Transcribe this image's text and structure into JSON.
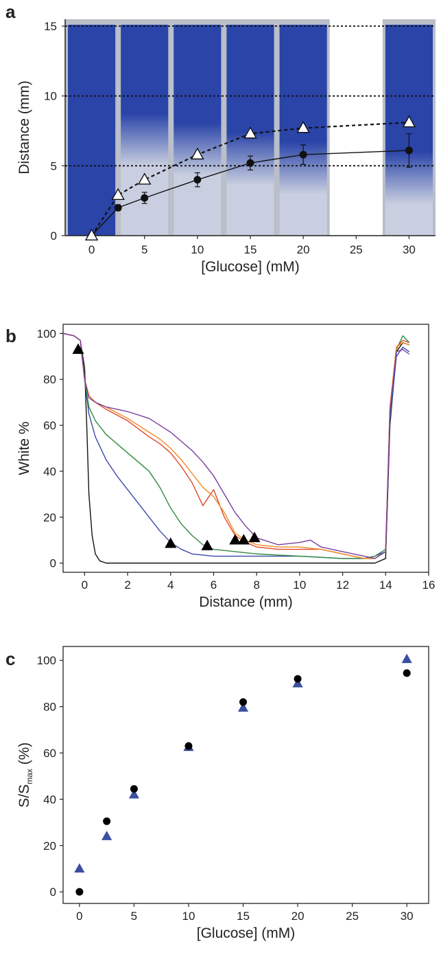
{
  "chart_data": [
    {
      "panel": "a",
      "type": "line",
      "background": "photo strips of blue dye in paper channels",
      "xlabel": "[Glucose] (mM)",
      "ylabel": "Distance (mm)",
      "xlim": [
        -2.5,
        32.5
      ],
      "ylim": [
        0,
        15
      ],
      "xticks": [
        0,
        5,
        10,
        15,
        20,
        25,
        30
      ],
      "yticks": [
        0,
        5,
        10,
        15
      ],
      "reference_lines": [
        5,
        10,
        15
      ],
      "strip_centers": [
        0,
        5,
        10,
        15,
        20,
        30
      ],
      "strip_colors": {
        "blue": "#2a44a8",
        "light": "#c9cfe0",
        "frame": "#b9bec9"
      },
      "series": [
        {
          "marker": "triangle-open",
          "style": "dashed",
          "x": [
            0,
            2.5,
            5,
            10,
            15,
            20,
            30
          ],
          "y": [
            0,
            2.9,
            4.0,
            5.8,
            7.3,
            7.7,
            8.1
          ]
        },
        {
          "marker": "circle-filled",
          "style": "solid",
          "x": [
            0,
            2.5,
            5,
            10,
            15,
            20,
            30
          ],
          "y": [
            0,
            2.0,
            2.7,
            4.0,
            5.2,
            5.8,
            6.1
          ],
          "err": [
            0,
            0.2,
            0.4,
            0.5,
            0.5,
            0.7,
            1.2
          ]
        }
      ]
    },
    {
      "panel": "b",
      "type": "line",
      "xlabel": "Distance (mm)",
      "ylabel": "White %",
      "xlim": [
        -1,
        16
      ],
      "ylim": [
        -4,
        104
      ],
      "xticks": [
        0,
        2,
        4,
        6,
        8,
        10,
        12,
        14,
        16
      ],
      "yticks": [
        0,
        20,
        40,
        60,
        80,
        100
      ],
      "series": [
        {
          "color": "#111111",
          "x": [
            -1,
            -0.5,
            -0.2,
            0,
            0.1,
            0.2,
            0.35,
            0.5,
            0.7,
            1.0,
            1.5,
            2,
            4,
            6,
            8,
            10,
            12,
            13,
            13.5,
            14,
            14.2,
            14.5,
            14.8,
            15.1
          ],
          "y": [
            100,
            99,
            97,
            85,
            60,
            30,
            12,
            4,
            1,
            0,
            0,
            0,
            0,
            0,
            0,
            0,
            0,
            0,
            0,
            2,
            60,
            92,
            96,
            95
          ]
        },
        {
          "color": "#3a47a8",
          "x": [
            -1,
            -0.5,
            -0.2,
            0,
            0.2,
            0.5,
            1,
            1.5,
            2,
            2.5,
            3,
            3.5,
            4,
            4.5,
            5,
            6,
            8,
            10,
            12,
            13,
            13.5,
            14,
            14.2,
            14.5,
            14.8,
            15.1
          ],
          "y": [
            100,
            99,
            97,
            80,
            65,
            55,
            45,
            38,
            32,
            26,
            20,
            14,
            9,
            6,
            4,
            3,
            3,
            3,
            2,
            2,
            3,
            5,
            62,
            90,
            94,
            92
          ]
        },
        {
          "color": "#2e8b3d",
          "x": [
            -1,
            -0.5,
            -0.2,
            0,
            0.2,
            0.5,
            1,
            1.5,
            2,
            2.5,
            3,
            3.5,
            4,
            4.5,
            5,
            5.5,
            6,
            8,
            10,
            12,
            13,
            13.5,
            14,
            14.2,
            14.5,
            14.8,
            15.1
          ],
          "y": [
            100,
            99,
            97,
            80,
            68,
            62,
            56,
            52,
            48,
            44,
            40,
            33,
            24,
            17,
            12,
            8,
            6,
            4,
            3,
            2,
            2,
            3,
            6,
            65,
            93,
            99,
            96
          ]
        },
        {
          "color": "#e0462a",
          "x": [
            -1,
            -0.5,
            -0.2,
            0,
            0.2,
            0.5,
            1,
            2,
            3,
            3.5,
            4,
            4.5,
            5,
            5.5,
            6,
            6.5,
            7,
            7.5,
            8,
            9,
            10,
            11,
            12,
            13,
            13.5,
            14,
            14.2,
            14.5,
            14.8,
            15.1
          ],
          "y": [
            100,
            99,
            97,
            80,
            73,
            70,
            67,
            62,
            55,
            52,
            48,
            42,
            35,
            25,
            32,
            20,
            12,
            9,
            7,
            6,
            6,
            6,
            4,
            2,
            2,
            5,
            68,
            94,
            97,
            96
          ]
        },
        {
          "color": "#f08a24",
          "x": [
            -1,
            -0.5,
            -0.2,
            0,
            0.2,
            0.5,
            1,
            2,
            3,
            3.5,
            4,
            4.5,
            5,
            5.5,
            6,
            6.5,
            7,
            7.5,
            8,
            9,
            10,
            11,
            12,
            13,
            13.5,
            14,
            14.2,
            14.5,
            14.8,
            15.1
          ],
          "y": [
            100,
            99,
            97,
            80,
            73,
            70,
            68,
            63,
            57,
            54,
            50,
            45,
            39,
            33,
            29,
            22,
            13,
            10,
            8,
            7,
            7,
            6,
            4,
            2,
            2,
            5,
            67,
            94,
            96,
            95
          ]
        },
        {
          "color": "#7a3e9d",
          "x": [
            -1,
            -0.5,
            -0.2,
            0,
            0.2,
            0.5,
            1,
            2,
            3,
            3.5,
            4,
            4.5,
            5,
            5.5,
            6,
            6.5,
            7,
            7.5,
            8,
            9,
            10,
            10.5,
            11,
            12,
            13,
            13.5,
            14,
            14.2,
            14.5,
            14.8,
            15.1
          ],
          "y": [
            100,
            99,
            97,
            80,
            72,
            70,
            68,
            66,
            63,
            60,
            57,
            53,
            49,
            44,
            38,
            30,
            22,
            16,
            11,
            8,
            9,
            10,
            7,
            5,
            3,
            2,
            5,
            66,
            92,
            93,
            91
          ]
        }
      ],
      "markers": {
        "shape": "triangle-filled",
        "color": "#000000",
        "x": [
          -0.3,
          4.0,
          5.7,
          7.0,
          7.4,
          7.9
        ],
        "y": [
          93,
          8.5,
          7.5,
          10,
          10,
          11
        ]
      }
    },
    {
      "panel": "c",
      "type": "scatter",
      "xlabel": "[Glucose] (mM)",
      "ylabel_main": "S/S",
      "ylabel_sub": "max",
      "ylabel_tail": " (%)",
      "xlim": [
        -1.5,
        32
      ],
      "ylim": [
        -5,
        106
      ],
      "xticks": [
        0,
        5,
        10,
        15,
        20,
        25,
        30
      ],
      "yticks": [
        0,
        20,
        40,
        60,
        80,
        100
      ],
      "series": [
        {
          "marker": "circle-filled",
          "color": "#000000",
          "x": [
            0,
            2.5,
            5,
            10,
            15,
            20,
            30
          ],
          "y": [
            0,
            30.5,
            44.5,
            63,
            82,
            92,
            94.5
          ]
        },
        {
          "marker": "triangle-filled",
          "color": "#3a4fa0",
          "x": [
            0,
            2.5,
            5,
            10,
            15,
            20,
            30
          ],
          "y": [
            10,
            24,
            42,
            62.5,
            79.5,
            90,
            100.5
          ]
        }
      ]
    }
  ]
}
